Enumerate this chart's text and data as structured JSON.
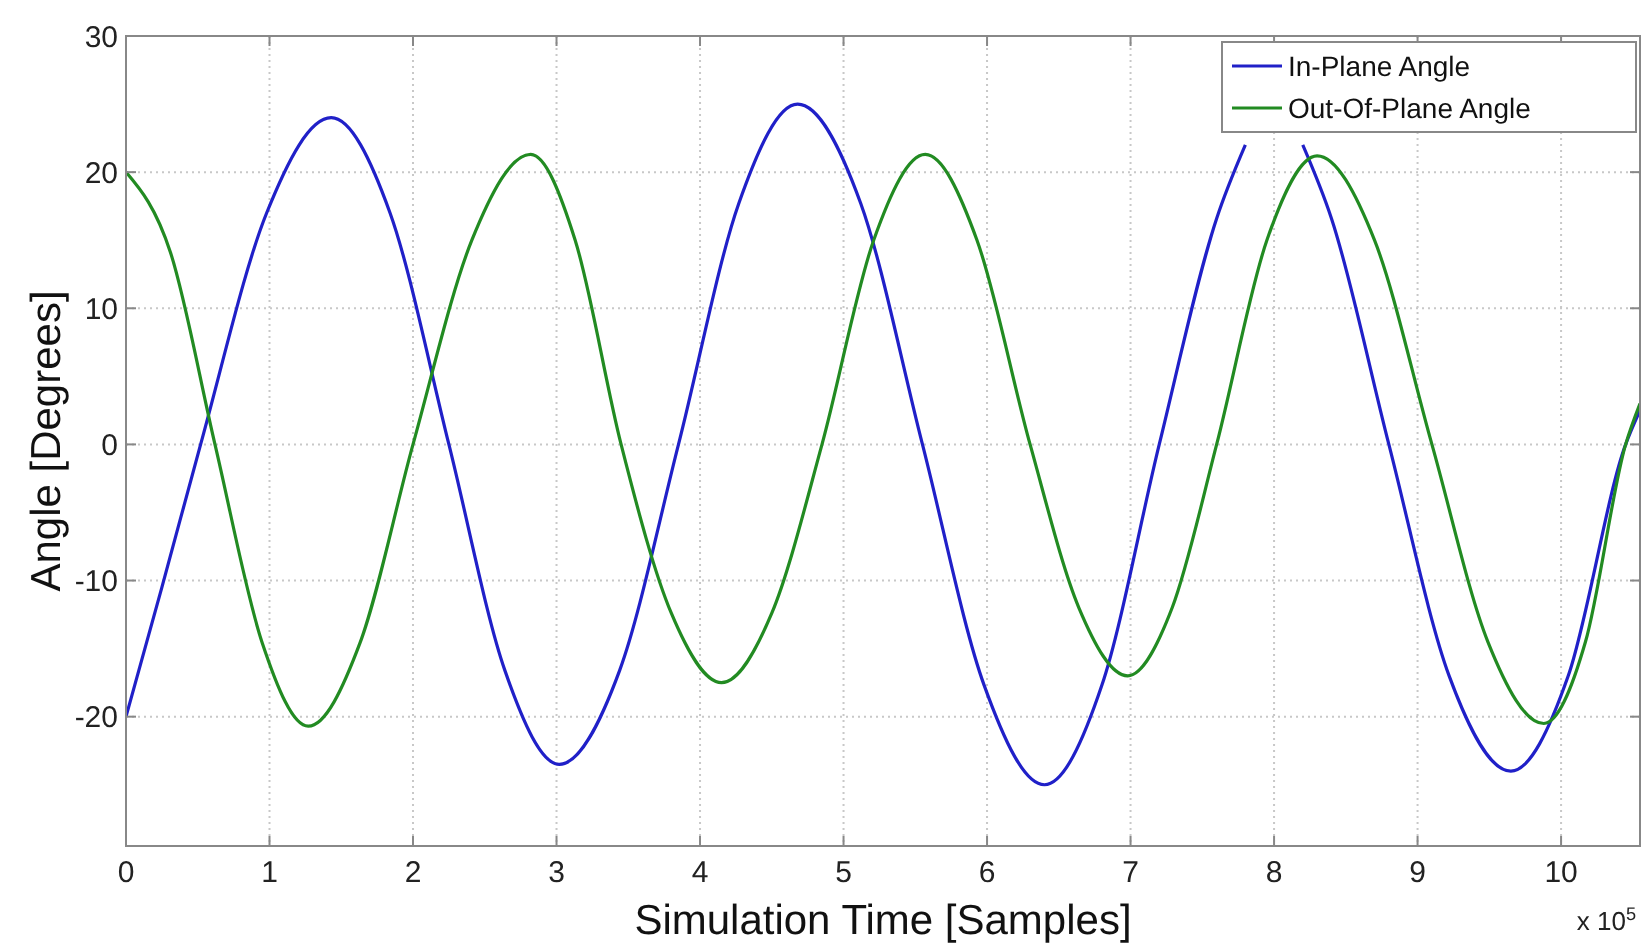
{
  "chart_data": {
    "type": "line",
    "xlabel": "Simulation Time [Samples]",
    "ylabel": "Angle [Degrees]",
    "annotations": [
      "x 10$^{5}$"
    ],
    "xlim": [
      0,
      10.55
    ],
    "xticks": [
      0,
      1,
      2,
      3,
      4,
      5,
      6,
      7,
      8,
      9,
      10
    ],
    "ylim": [
      -29.5,
      30
    ],
    "yticks": [
      -20,
      -10,
      0,
      10,
      20,
      30
    ],
    "grid": true,
    "legend": "top right",
    "line_style": "solid",
    "series": [
      {
        "name": "In-Plane Angle",
        "color": "#2020c8",
        "x": [
          0,
          0.25,
          0.52,
          0.98,
          1.43,
          1.84,
          2.25,
          2.64,
          3.02,
          3.44,
          3.85,
          4.27,
          4.68,
          5.12,
          5.55,
          5.98,
          6.4,
          6.8,
          7.2,
          7.6,
          7.8,
          8.0,
          8.2,
          8.4,
          8.8,
          9.22,
          9.65,
          10.05,
          10.45,
          10.55
        ],
        "values": [
          -20,
          -10.5,
          0,
          17,
          24,
          17,
          0,
          -16.6,
          -23.5,
          -16.6,
          0,
          17.7,
          25,
          17.7,
          0,
          -17.7,
          -25,
          -17.7,
          0,
          16.6,
          22,
          null,
          22,
          16.6,
          0,
          -17,
          -24,
          -17,
          0,
          2.5
        ]
      },
      {
        "name": "Out-Of-Plane Angle",
        "color": "#228b22",
        "x": [
          0,
          0.31,
          0.62,
          0.95,
          1.27,
          1.63,
          2.0,
          2.41,
          2.82,
          3.13,
          3.45,
          3.8,
          4.15,
          4.5,
          4.85,
          5.21,
          5.57,
          5.93,
          6.3,
          6.64,
          6.98,
          7.29,
          7.6,
          7.95,
          8.3,
          8.7,
          9.1,
          9.49,
          9.88,
          10.17,
          10.45,
          10.55
        ],
        "values": [
          20,
          14.1,
          0,
          -14.6,
          -20.7,
          -14.6,
          0,
          15,
          21.3,
          15,
          0,
          -12.4,
          -17.5,
          -12.4,
          0,
          15,
          21.3,
          15,
          0,
          -12,
          -17,
          -12,
          0,
          15,
          21.2,
          15,
          0,
          -14.5,
          -20.5,
          -14.5,
          0,
          3
        ]
      }
    ]
  }
}
